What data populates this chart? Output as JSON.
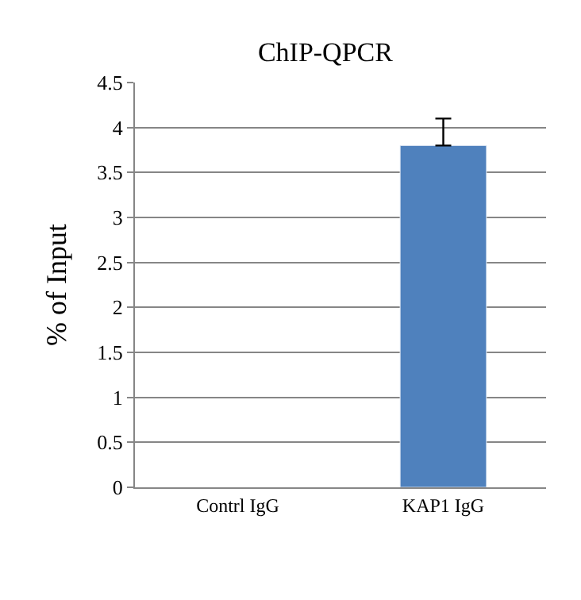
{
  "chart_data": {
    "type": "bar",
    "title": "ChIP-QPCR",
    "ylabel": "% of Input",
    "categories": [
      "Contrl IgG",
      "KAP1 IgG"
    ],
    "values": [
      null,
      3.8
    ],
    "errors": [
      null,
      [
        3.8,
        4.1
      ]
    ],
    "color": "#4f81bd",
    "ylim": [
      0,
      4.5
    ],
    "yticks": [
      0,
      0.5,
      1,
      1.5,
      2,
      2.5,
      3,
      3.5,
      4,
      4.5
    ],
    "grid": "y"
  }
}
